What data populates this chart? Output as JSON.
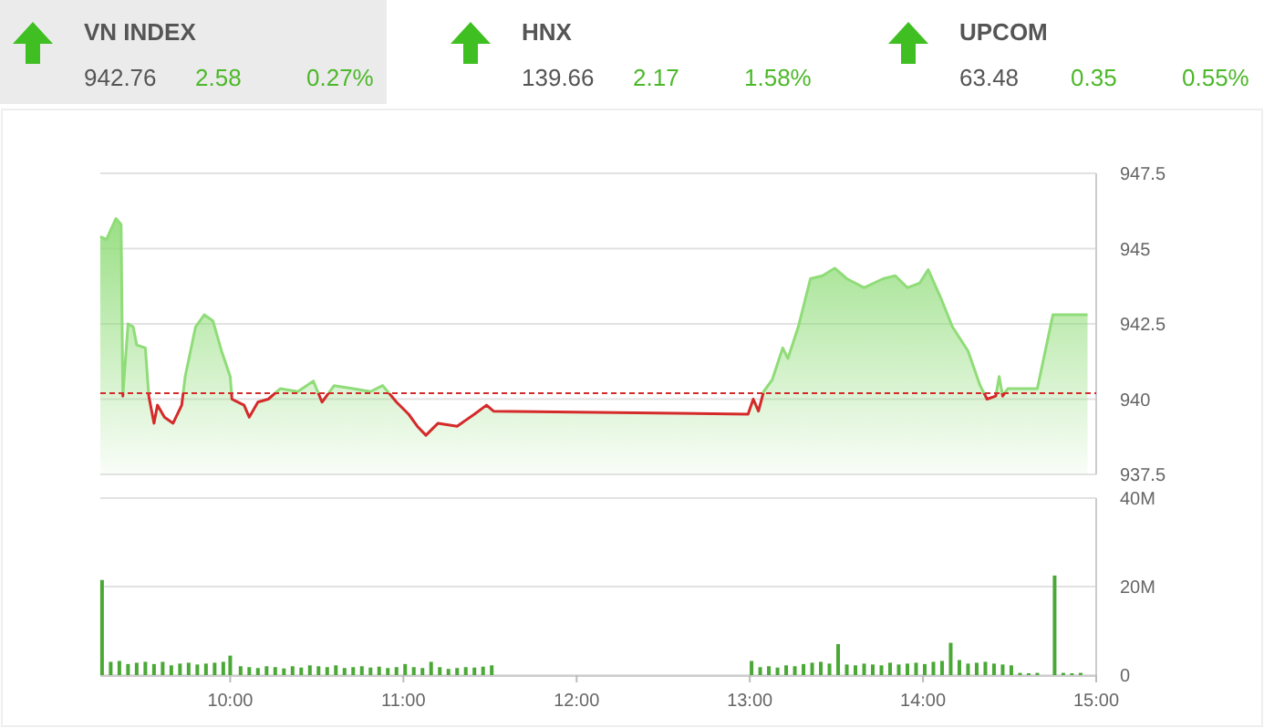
{
  "chart_data": [
    {
      "type": "other",
      "annotations": [
        "VN INDEX",
        "942.76",
        "2.58",
        "0.27%",
        "HNX",
        "139.66",
        "2.17",
        "1.58%",
        "UPCOM",
        "63.48",
        "0.35",
        "0.55%"
      ]
    },
    {
      "type": "area",
      "xlim": [
        9.25,
        15
      ],
      "ylim": [
        937.5,
        947.5
      ],
      "yticks": [
        937.5,
        940,
        942.5,
        945,
        947.5
      ],
      "grid": "y",
      "tick_labels": "y",
      "x": [
        9.25,
        9.285,
        9.34,
        9.37,
        9.38,
        9.41,
        9.44,
        9.46,
        9.51,
        9.53,
        9.56,
        9.58,
        9.62,
        9.67,
        9.72,
        9.74,
        9.8,
        9.85,
        9.9,
        9.95,
        10.0,
        10.01,
        10.08,
        10.11,
        10.16,
        10.22,
        10.29,
        10.39,
        10.48,
        10.53,
        10.6,
        10.71,
        10.81,
        10.88,
        10.96,
        11.03,
        11.08,
        11.13,
        11.2,
        11.31,
        11.41,
        11.48,
        11.52,
        12.99,
        13.02,
        13.05,
        13.08,
        13.13,
        13.19,
        13.22,
        13.28,
        13.35,
        13.42,
        13.49,
        13.56,
        13.66,
        13.77,
        13.84,
        13.91,
        13.98,
        14.03,
        14.1,
        14.17,
        14.26,
        14.33,
        14.37,
        14.42,
        14.44,
        14.46,
        14.49,
        14.66,
        14.75,
        14.95
      ],
      "series": [
        {
          "color": "#8fdc78",
          "values": [
            945.4,
            945.3,
            946.0,
            945.8,
            940.1,
            942.5,
            942.4,
            941.8,
            941.7,
            940.1,
            939.2,
            939.8,
            939.4,
            939.2,
            939.8,
            940.75,
            942.4,
            942.8,
            942.6,
            941.6,
            940.75,
            940.0,
            939.8,
            939.4,
            939.9,
            940.0,
            940.35,
            940.25,
            940.6,
            939.9,
            940.45,
            940.35,
            940.25,
            940.45,
            939.9,
            939.5,
            939.1,
            938.8,
            939.2,
            939.1,
            939.5,
            939.8,
            939.6,
            939.5,
            940.0,
            939.6,
            940.25,
            940.65,
            941.7,
            941.35,
            942.4,
            944.0,
            944.1,
            944.35,
            944.0,
            943.7,
            944.0,
            944.1,
            943.7,
            943.85,
            944.3,
            943.4,
            942.4,
            941.6,
            940.45,
            940.0,
            940.1,
            940.75,
            940.1,
            940.35,
            940.35,
            942.8,
            942.8
          ]
        }
      ],
      "ref_lines": [
        {
          "axis": "y",
          "value": 940.2,
          "color": "#d42a2a",
          "line_style": "dashed"
        }
      ]
    },
    {
      "type": "bar",
      "xlim": [
        9.25,
        15
      ],
      "ylim": [
        0,
        40
      ],
      "yticks": [
        {
          "value": 0,
          "label": "0"
        },
        {
          "value": 20,
          "label": "20M"
        },
        {
          "value": 40,
          "label": "40M"
        }
      ],
      "xticks": [
        {
          "value": 10,
          "label": "10:00"
        },
        {
          "value": 11,
          "label": "11:00"
        },
        {
          "value": 12,
          "label": "12:00"
        },
        {
          "value": 13,
          "label": "13:00"
        },
        {
          "value": 14,
          "label": "14:00"
        },
        {
          "value": 15,
          "label": "15:00"
        }
      ],
      "grid": "y",
      "color": "#4aa836",
      "x": [
        9.26,
        9.31,
        9.36,
        9.41,
        9.46,
        9.51,
        9.56,
        9.61,
        9.66,
        9.71,
        9.76,
        9.81,
        9.86,
        9.91,
        9.96,
        10.0,
        10.06,
        10.11,
        10.16,
        10.21,
        10.26,
        10.31,
        10.36,
        10.41,
        10.46,
        10.51,
        10.56,
        10.61,
        10.66,
        10.71,
        10.76,
        10.81,
        10.86,
        10.91,
        10.96,
        11.01,
        11.06,
        11.11,
        11.16,
        11.21,
        11.26,
        11.31,
        11.36,
        11.41,
        11.46,
        11.51,
        13.01,
        13.06,
        13.11,
        13.16,
        13.21,
        13.26,
        13.31,
        13.36,
        13.41,
        13.46,
        13.51,
        13.56,
        13.61,
        13.66,
        13.71,
        13.76,
        13.81,
        13.86,
        13.91,
        13.96,
        14.01,
        14.06,
        14.11,
        14.16,
        14.21,
        14.26,
        14.31,
        14.36,
        14.41,
        14.46,
        14.51,
        14.56,
        14.61,
        14.66,
        14.76,
        14.81,
        14.86,
        14.91
      ],
      "values": [
        21.5,
        3,
        3.2,
        2.5,
        2.8,
        3,
        2.5,
        3,
        2.2,
        2.6,
        2.8,
        2.4,
        2.6,
        2.8,
        3,
        4.4,
        2,
        1.8,
        1.6,
        2,
        1.8,
        1.5,
        2,
        1.7,
        2.2,
        2,
        1.8,
        2.2,
        1.6,
        1.8,
        2,
        1.7,
        1.9,
        1.6,
        1.8,
        2.5,
        1.8,
        1.6,
        3,
        1.8,
        1.4,
        1.6,
        1.8,
        1.7,
        1.9,
        2.2,
        3.2,
        1.8,
        2,
        1.7,
        2.2,
        2,
        2.5,
        2.8,
        3,
        2.6,
        7,
        2.4,
        2.2,
        2.6,
        2.4,
        2.2,
        2.8,
        2.4,
        2.6,
        2.8,
        2.5,
        3,
        3.2,
        7.3,
        3.4,
        2.6,
        2.8,
        3,
        2.6,
        2.4,
        2.2,
        0.5,
        0.4,
        0.5,
        22.5,
        0.5,
        0.4,
        0.5
      ]
    }
  ]
}
